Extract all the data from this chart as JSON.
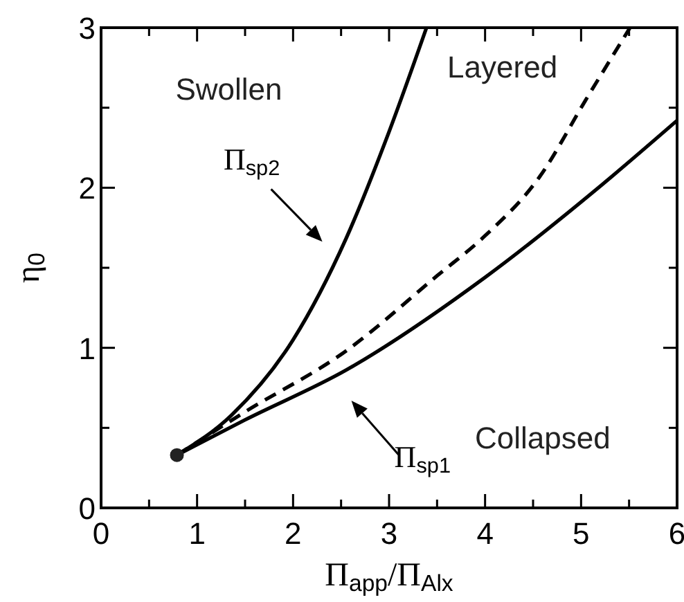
{
  "chart_data": {
    "type": "line",
    "xlabel": "Π$_{app}$/Π$_{Alx}$",
    "ylabel": "η$_{0}$",
    "xlim": [
      0,
      6
    ],
    "ylim": [
      0,
      3
    ],
    "xticks": [
      0,
      {
        "value": 0.5,
        "label": null
      },
      1,
      {
        "value": 1.5,
        "label": null
      },
      2,
      {
        "value": 2.5,
        "label": null
      },
      3,
      {
        "value": 3.5,
        "label": null
      },
      4,
      {
        "value": 4.5,
        "label": null
      },
      5,
      {
        "value": 5.5,
        "label": null
      },
      6
    ],
    "yticks": [
      0,
      {
        "value": 0.5,
        "label": null
      },
      1,
      {
        "value": 1.5,
        "label": null
      },
      2,
      {
        "value": 2.5,
        "label": null
      },
      3
    ],
    "grid": false,
    "legend": false,
    "marker": "none",
    "series": [
      {
        "name": "Π$_{sp2}$",
        "color": "#000000",
        "line_style": "solid",
        "x": [
          0.79,
          1.36,
          2.0,
          2.55,
          3.0,
          3.39
        ],
        "values": [
          0.33,
          0.58,
          1.05,
          1.68,
          2.35,
          3.0
        ]
      },
      {
        "color": "#000000",
        "line_style": "dashed",
        "x": [
          0.79,
          1.5,
          2.55,
          3.5,
          4.0,
          4.57,
          5.05,
          5.51
        ],
        "values": [
          0.33,
          0.6,
          0.98,
          1.45,
          1.7,
          2.07,
          2.55,
          3.0
        ]
      },
      {
        "name": "Π$_{sp1}$",
        "color": "#000000",
        "line_style": "solid",
        "x": [
          0.79,
          1.5,
          2.55,
          4.0,
          5.22,
          6.0
        ],
        "values": [
          0.33,
          0.55,
          0.86,
          1.44,
          2.02,
          2.42
        ]
      },
      {
        "type": "scatter",
        "color": "#222222",
        "marker": "circle",
        "x": [
          0.79
        ],
        "values": [
          0.33
        ]
      }
    ],
    "annotations": [
      "Swollen",
      "Layered",
      "Collapsed"
    ]
  }
}
